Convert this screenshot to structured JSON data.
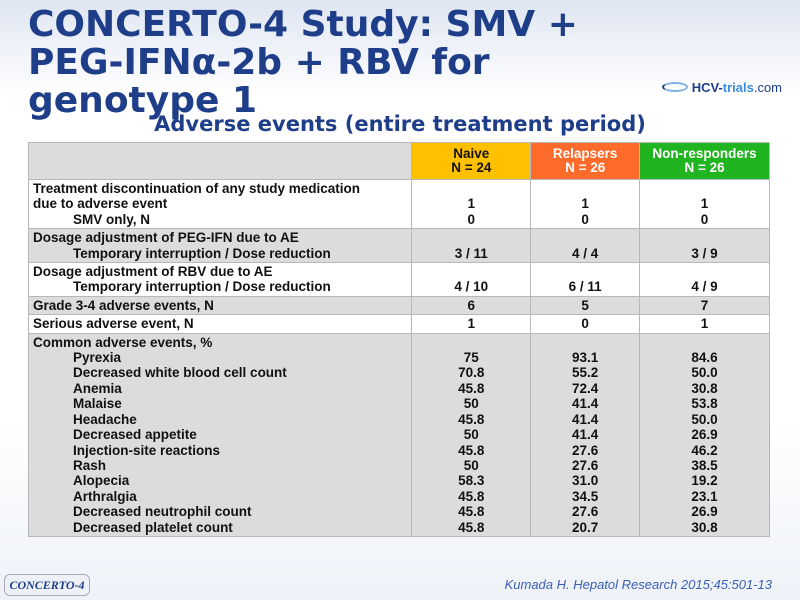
{
  "title": "CONCERTO-4 Study: SMV + PEG-IFNα-2b + RBV for genotype 1",
  "logo": {
    "part1": "HCV-",
    "part2": "trials",
    "part3": ".com"
  },
  "subtitle": "Adverse events (entire treatment period)",
  "colors": {
    "naive": "#ffc000",
    "relapsers": "#ff6b2a",
    "non_responders": "#21b421",
    "title": "#1f3e8a"
  },
  "table": {
    "headers": [
      {
        "label": "Naive",
        "n": "N = 24"
      },
      {
        "label": "Relapsers",
        "n": "N = 26"
      },
      {
        "label": "Non-responders",
        "n": "N = 26"
      }
    ],
    "discontinuation": {
      "label1": "Treatment discontinuation of any study medication",
      "label2": "due to adverse event",
      "label3": "SMV only, N",
      "naive": [
        "1",
        "0"
      ],
      "relapsers": [
        "1",
        "0"
      ],
      "non": [
        "1",
        "0"
      ]
    },
    "peg": {
      "label1": "Dosage adjustment of PEG-IFN due to AE",
      "label2": "Temporary interruption / Dose reduction",
      "naive": "3 / 11",
      "relapsers": "4 / 4",
      "non": "3 / 9"
    },
    "rbv": {
      "label1": "Dosage adjustment of RBV due to AE",
      "label2": "Temporary interruption / Dose reduction",
      "naive": "4 / 10",
      "relapsers": "6 / 11",
      "non": "4 / 9"
    },
    "grade34": {
      "label": "Grade 3-4 adverse events, N",
      "naive": "6",
      "relapsers": "5",
      "non": "7"
    },
    "serious": {
      "label": "Serious adverse event, N",
      "naive": "1",
      "relapsers": "0",
      "non": "1"
    },
    "common": {
      "label": "Common adverse events, %",
      "items": [
        {
          "name": "Pyrexia",
          "naive": "75",
          "relapsers": "93.1",
          "non": "84.6"
        },
        {
          "name": "Decreased white blood cell count",
          "naive": "70.8",
          "relapsers": "55.2",
          "non": "50.0"
        },
        {
          "name": "Anemia",
          "naive": "45.8",
          "relapsers": "72.4",
          "non": "30.8"
        },
        {
          "name": "Malaise",
          "naive": "50",
          "relapsers": "41.4",
          "non": "53.8"
        },
        {
          "name": "Headache",
          "naive": "45.8",
          "relapsers": "41.4",
          "non": "50.0"
        },
        {
          "name": "Decreased appetite",
          "naive": "50",
          "relapsers": "41.4",
          "non": "26.9"
        },
        {
          "name": "Injection-site reactions",
          "naive": "45.8",
          "relapsers": "27.6",
          "non": "46.2"
        },
        {
          "name": "Rash",
          "naive": "50",
          "relapsers": "27.6",
          "non": "38.5"
        },
        {
          "name": "Alopecia",
          "naive": "58.3",
          "relapsers": "31.0",
          "non": "19.2"
        },
        {
          "name": "Arthralgia",
          "naive": "45.8",
          "relapsers": "34.5",
          "non": "23.1"
        },
        {
          "name": "Decreased neutrophil count",
          "naive": "45.8",
          "relapsers": "27.6",
          "non": "26.9"
        },
        {
          "name": "Decreased platelet count",
          "naive": "45.8",
          "relapsers": "20.7",
          "non": "30.8"
        }
      ]
    }
  },
  "footer_tag": "CONCERTO-4",
  "citation": "Kumada H. Hepatol Research 2015;45:501-13"
}
